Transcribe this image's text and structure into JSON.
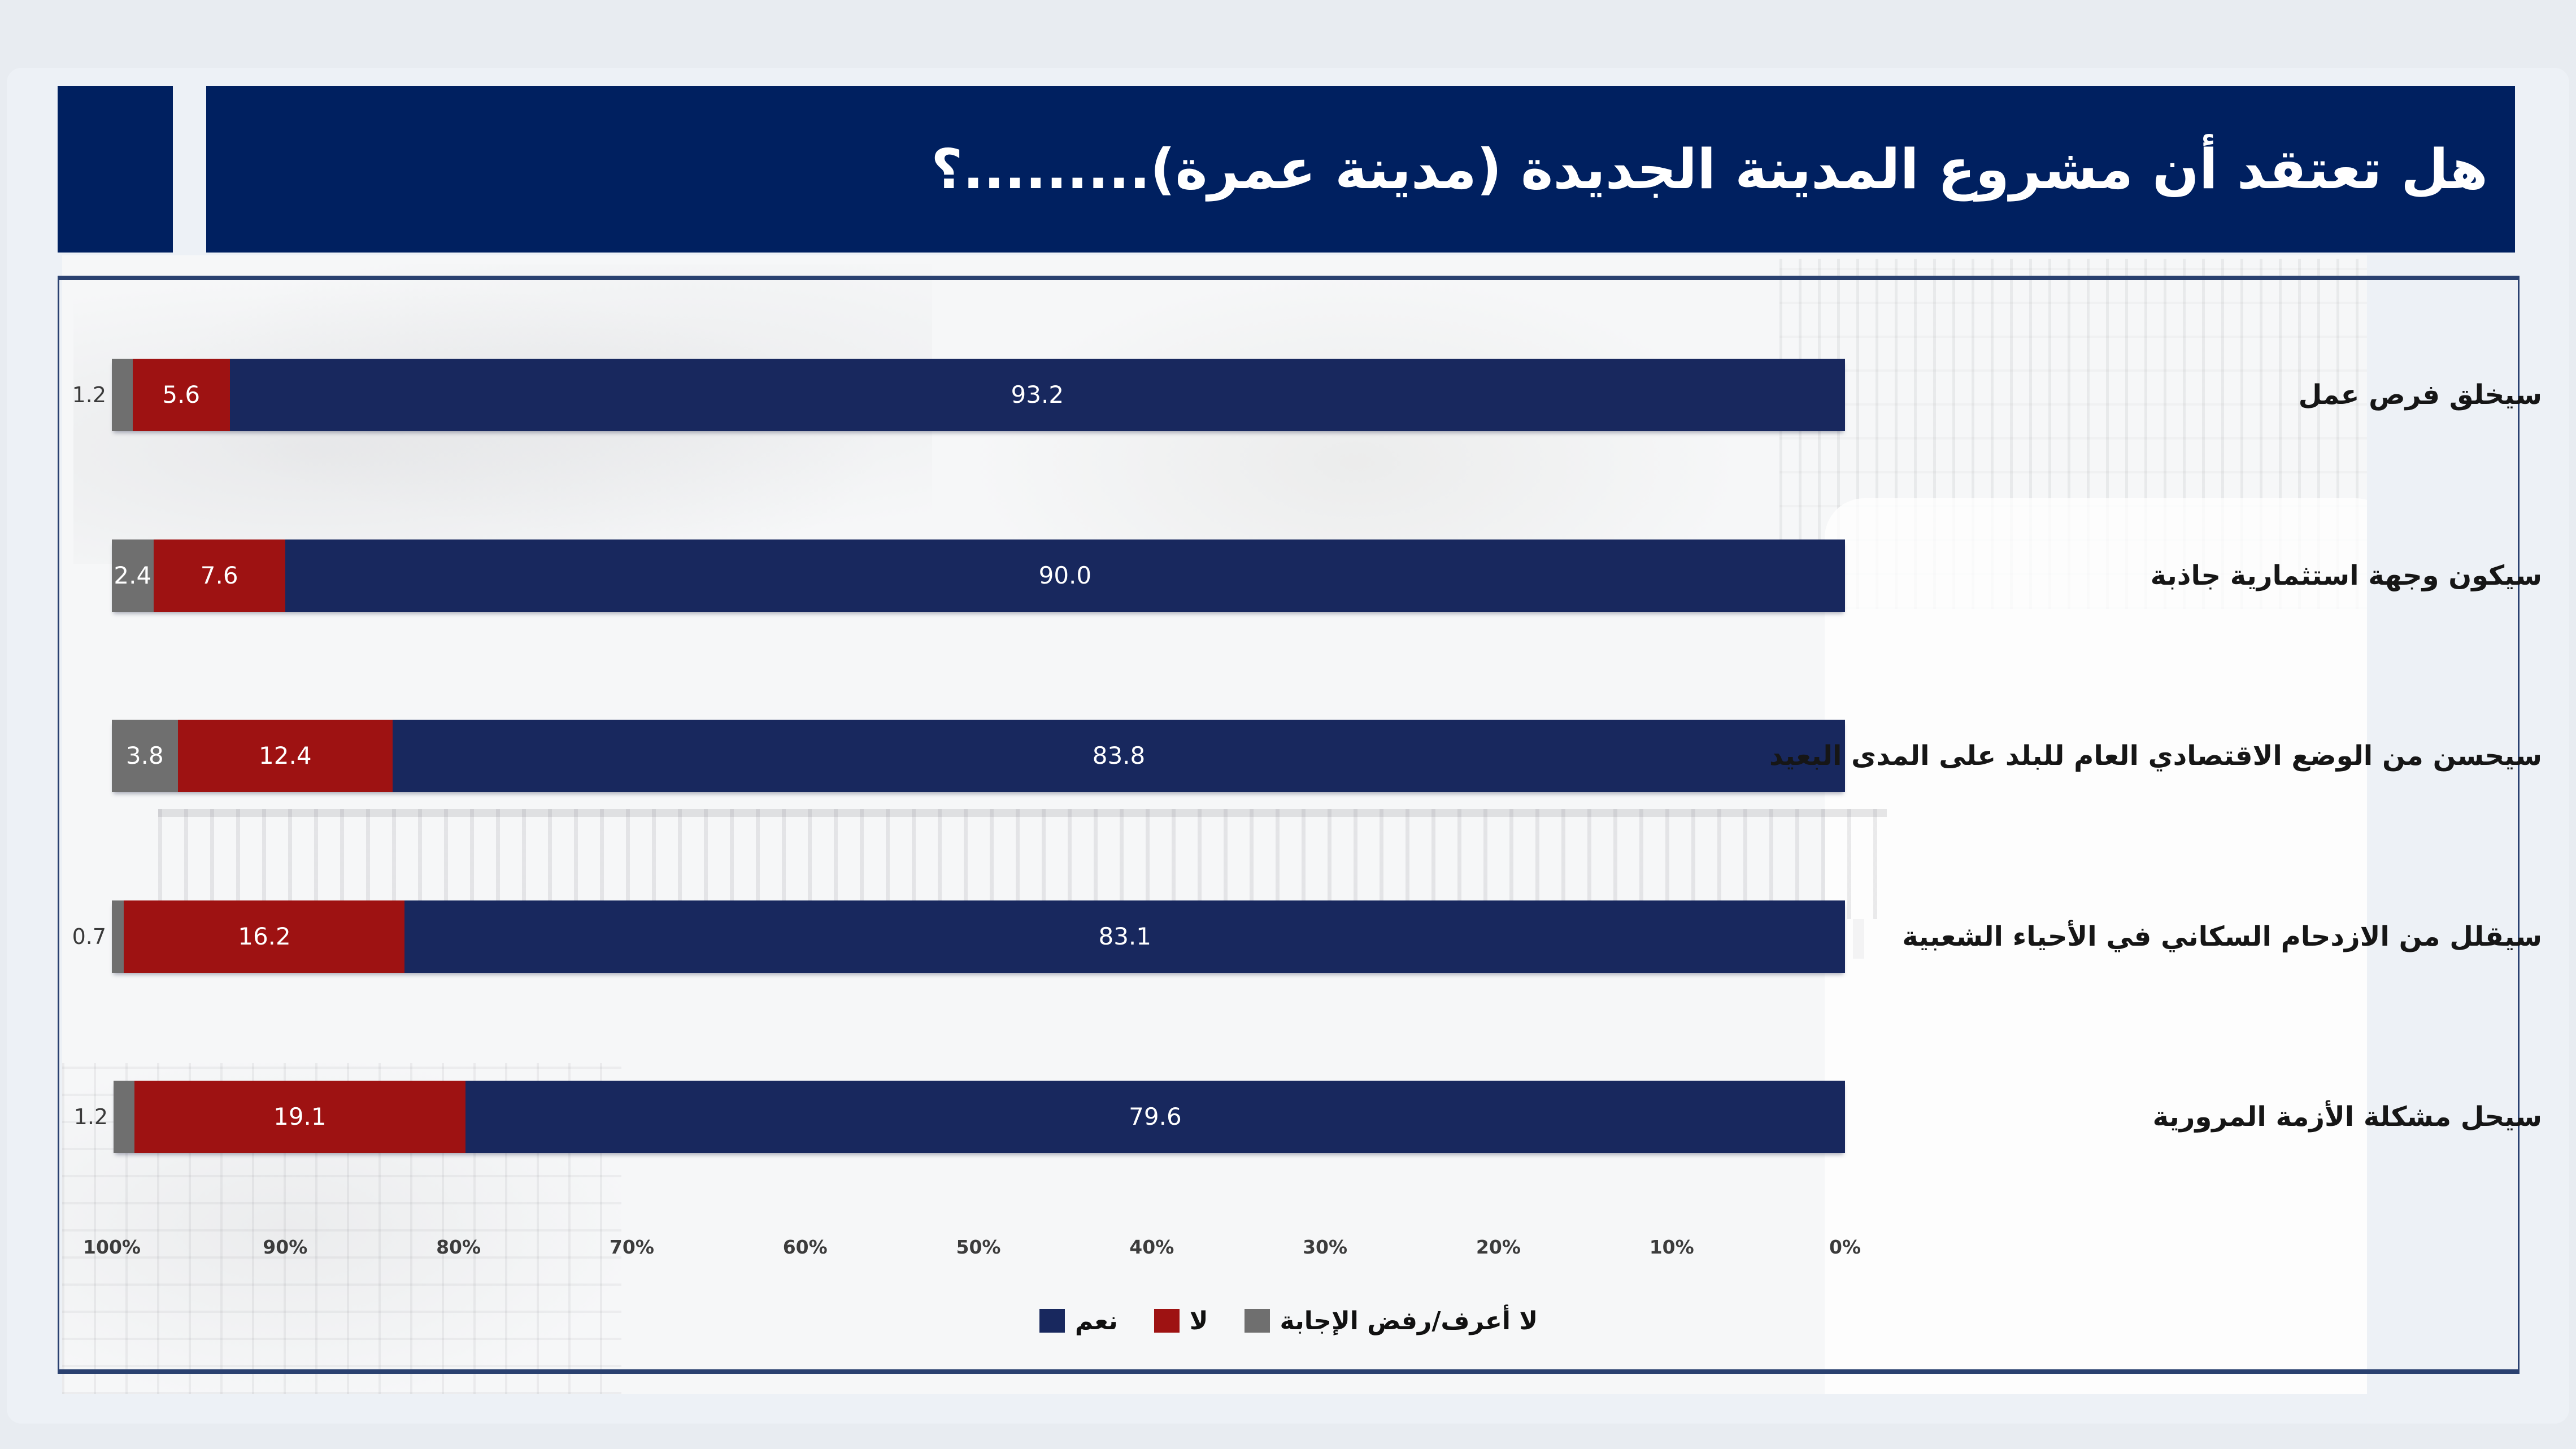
{
  "title": {
    "text": "هل تعتقد أن مشروع المدينة الجديدة (مدينة عمرة).........؟"
  },
  "colors": {
    "banner_navy": "#002060",
    "bar_navy": "#18285e",
    "bar_red": "#9e1212",
    "bar_gray": "#6f6f6f",
    "box_border": "#2a4170",
    "slide_bg": "#e8ecf1"
  },
  "chart_data": {
    "type": "bar",
    "orientation": "horizontal",
    "direction": "rtl",
    "title": "هل تعتقد أن مشروع المدينة الجديدة (مدينة عمرة).........؟",
    "categories": [
      "سيخلق فرص عمل",
      "سيكون وجهة استثمارية جاذبة",
      "سيحسن من الوضع الاقتصادي العام للبلد على المدى البعيد",
      "سيقلل من الازدحام السكاني في الأحياء الشعبية",
      "سيحل مشكلة الأزمة المرورية"
    ],
    "series": [
      {
        "name": "نعم",
        "color_key": "bar_navy",
        "values": [
          93.2,
          90.0,
          83.8,
          83.1,
          79.6
        ]
      },
      {
        "name": "لا",
        "color_key": "bar_red",
        "values": [
          5.6,
          7.6,
          12.4,
          16.2,
          19.1
        ]
      },
      {
        "name": "لا أعرف/رفض الإجابة",
        "color_key": "bar_gray",
        "values": [
          1.2,
          2.4,
          3.8,
          0.7,
          1.2
        ]
      }
    ],
    "x_axis": {
      "ticks": [
        "100%",
        "90%",
        "80%",
        "70%",
        "60%",
        "50%",
        "40%",
        "30%",
        "20%",
        "10%",
        "0%"
      ],
      "min": 0,
      "max": 100,
      "reversed": true,
      "grid": false
    },
    "value_labels": "inside, white, one decimal; tiny segments labeled outside-left in dark gray",
    "legend_position": "bottom-center"
  }
}
